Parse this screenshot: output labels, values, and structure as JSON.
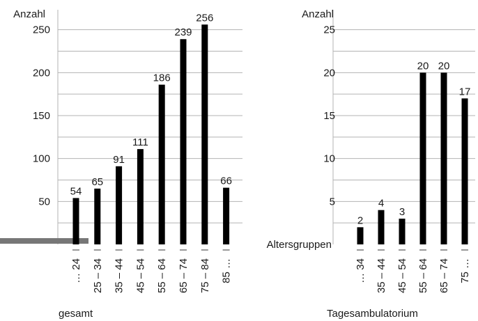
{
  "chart_data": [
    {
      "type": "bar",
      "title": "gesamt",
      "ylabel": "Anzahl",
      "xlabel": "",
      "ylim": [
        0,
        270
      ],
      "yticks": [
        50,
        100,
        150,
        200,
        250
      ],
      "grid": true,
      "categories": [
        "… 24",
        "25 – 34",
        "35 – 44",
        "45 – 54",
        "55 – 64",
        "65 – 74",
        "75 – 84",
        "85 …"
      ],
      "values": [
        54,
        65,
        91,
        111,
        186,
        239,
        256,
        66
      ],
      "bar_color": "#000000",
      "grid_color": "#b3b3b3",
      "marker_color": "#777777"
    },
    {
      "type": "bar",
      "title": "Tagesambulatorium",
      "ylabel": "Anzahl",
      "xlabel": "Altersgruppen",
      "ylim": [
        0,
        27
      ],
      "yticks": [
        5,
        10,
        15,
        20,
        25
      ],
      "grid": true,
      "categories": [
        "… 34",
        "35 – 44",
        "45 – 54",
        "55 – 64",
        "65 – 74",
        "75 …"
      ],
      "values": [
        2,
        4,
        3,
        20,
        20,
        17
      ],
      "bar_color": "#000000",
      "grid_color": "#b3b3b3"
    }
  ]
}
